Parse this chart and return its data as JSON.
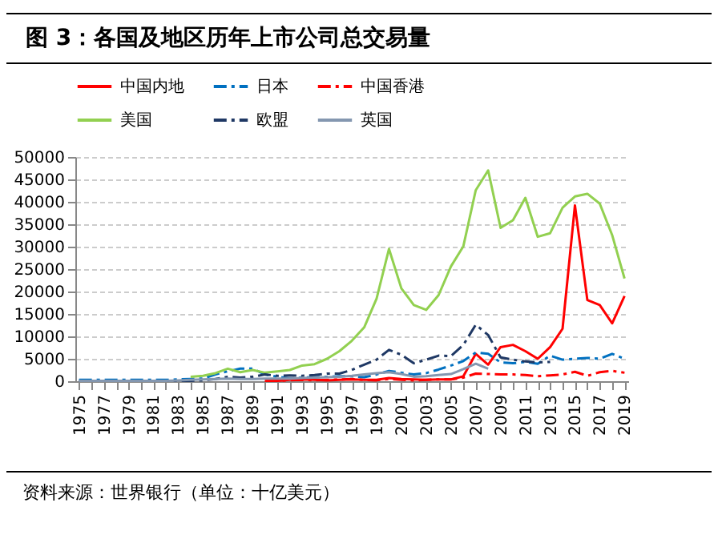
{
  "chart_data": {
    "type": "line",
    "title": "图 3：各国及地区历年上市公司总交易量",
    "annotations": [
      "资料来源：世界银行（单位：十亿美元）"
    ],
    "categories": [
      "1975",
      null,
      "1977",
      null,
      "1979",
      null,
      "1981",
      null,
      "1983",
      null,
      "1985",
      null,
      "1987",
      null,
      "1989",
      null,
      "1991",
      null,
      "1993",
      null,
      "1995",
      null,
      "1997",
      null,
      "1999",
      null,
      "2001",
      null,
      "2003",
      null,
      "2005",
      null,
      "2007",
      null,
      "2009",
      null,
      "2011",
      null,
      "2013",
      null,
      "2015",
      null,
      "2017",
      null,
      "2019"
    ],
    "series": [
      {
        "name": "中国内地",
        "color": "#ff0000",
        "line_style": "solid",
        "values": [
          null,
          null,
          null,
          null,
          null,
          null,
          null,
          null,
          null,
          null,
          null,
          null,
          null,
          null,
          null,
          100,
          100,
          300,
          400,
          300,
          200,
          300,
          400,
          300,
          300,
          700,
          500,
          400,
          300,
          400,
          400,
          1100,
          6100,
          3700,
          7600,
          8100,
          6700,
          5000,
          7600,
          11700,
          39200,
          18100,
          17000,
          12900,
          19000
        ]
      },
      {
        "name": "日本",
        "color": "#0070c0",
        "line_style": "dashed",
        "values": [
          300,
          300,
          300,
          300,
          300,
          300,
          300,
          300,
          400,
          500,
          600,
          1500,
          2200,
          2800,
          2800,
          1500,
          1000,
          600,
          800,
          900,
          1000,
          1100,
          1100,
          900,
          1500,
          2300,
          1900,
          1500,
          1800,
          2600,
          3500,
          4500,
          6400,
          6100,
          4200,
          4000,
          4300,
          3900,
          5700,
          4800,
          5000,
          5200,
          5000,
          6100,
          5000
        ]
      },
      {
        "name": "中国香港",
        "color": "#ff0000",
        "line_style": "dashed",
        "values": [
          null,
          null,
          null,
          null,
          null,
          null,
          null,
          null,
          null,
          null,
          null,
          null,
          null,
          null,
          null,
          100,
          100,
          200,
          300,
          200,
          300,
          400,
          500,
          300,
          200,
          500,
          300,
          200,
          300,
          400,
          400,
          800,
          1700,
          1600,
          1500,
          1500,
          1400,
          1100,
          1300,
          1500,
          2100,
          1200,
          2000,
          2300,
          1900
        ]
      },
      {
        "name": "美国",
        "color": "#92d050",
        "line_style": "solid",
        "values": [
          null,
          null,
          null,
          null,
          null,
          null,
          null,
          null,
          null,
          1000,
          1200,
          1800,
          2800,
          2000,
          2500,
          1900,
          2200,
          2500,
          3500,
          3800,
          5000,
          6700,
          9000,
          12000,
          18400,
          29500,
          20700,
          17000,
          15900,
          19200,
          25600,
          30100,
          42600,
          47000,
          34200,
          35900,
          40900,
          32200,
          33000,
          38700,
          41200,
          41800,
          39600,
          32600,
          22900
        ]
      },
      {
        "name": "欧盟",
        "color": "#1f3864",
        "line_style": "dashed",
        "values": [
          100,
          100,
          100,
          100,
          100,
          100,
          100,
          100,
          100,
          100,
          200,
          500,
          1000,
          800,
          1000,
          1500,
          1200,
          1300,
          1200,
          1400,
          1700,
          1700,
          2500,
          3700,
          4800,
          7000,
          5900,
          4000,
          4800,
          5700,
          5600,
          8100,
          12600,
          10300,
          5300,
          4800,
          4400,
          4200,
          4300,
          null,
          null,
          null,
          null,
          null,
          null
        ]
      },
      {
        "name": "英国",
        "color": "#8497b0",
        "line_style": "solid",
        "values": [
          100,
          100,
          100,
          100,
          100,
          100,
          100,
          100,
          200,
          300,
          400,
          500,
          600,
          500,
          500,
          600,
          600,
          600,
          700,
          800,
          900,
          1000,
          1200,
          1500,
          1800,
          2000,
          1600,
          1000,
          1100,
          1400,
          1600,
          2700,
          3900,
          2800,
          null,
          null,
          null,
          null,
          null,
          null,
          null,
          null,
          null,
          null,
          null
        ]
      }
    ],
    "ylim": [
      0,
      50000
    ],
    "yticks": [
      0,
      5000,
      10000,
      15000,
      20000,
      25000,
      30000,
      35000,
      40000,
      45000,
      50000
    ],
    "grid": "y",
    "legend": "top"
  }
}
